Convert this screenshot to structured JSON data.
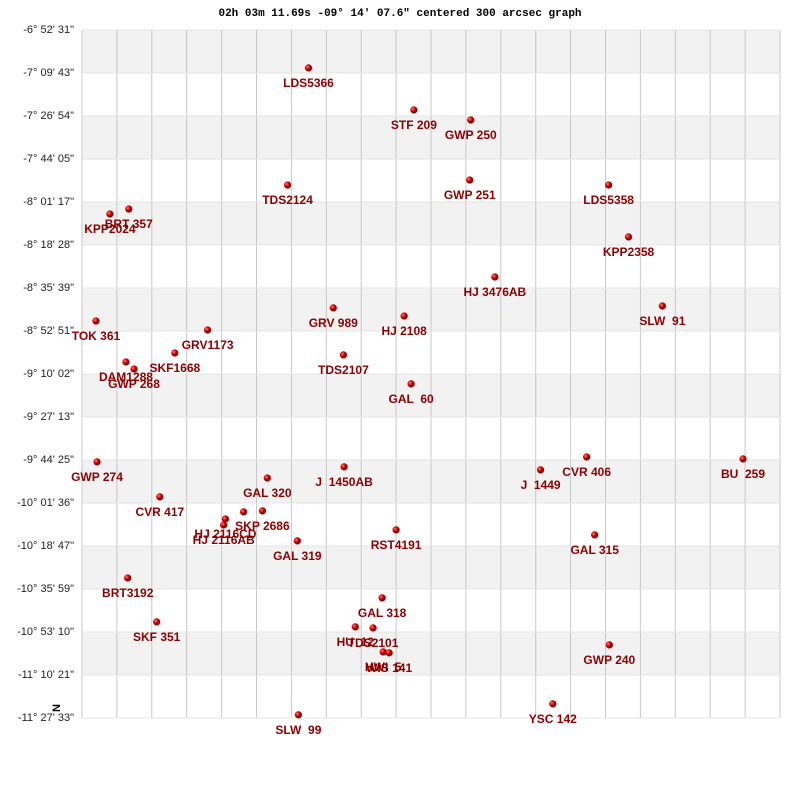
{
  "chart_data": {
    "type": "scatter",
    "title": "02h 03m 11.69s -09° 14′ 07.6\" centered 300 arcsec graph",
    "orientation_label": "N",
    "xlim": [
      0,
      20
    ],
    "xticks": [
      0,
      1,
      2,
      3,
      4,
      5,
      6,
      7,
      8,
      9,
      10,
      11,
      12,
      13,
      14,
      15,
      16,
      17,
      18,
      19,
      20
    ],
    "ylim": [
      -11.45917,
      -6.87528
    ],
    "yticks": [
      {
        "value": -6.87528,
        "label": "-6° 52' 31\""
      },
      {
        "value": -7.16194,
        "label": "-7° 09' 43\""
      },
      {
        "value": -7.44833,
        "label": "-7° 26' 54\""
      },
      {
        "value": -7.73472,
        "label": "-7° 44' 05\""
      },
      {
        "value": -8.02139,
        "label": "-8° 01' 17\""
      },
      {
        "value": -8.30778,
        "label": "-8° 18' 28\""
      },
      {
        "value": -8.59417,
        "label": "-8° 35' 39\""
      },
      {
        "value": -8.88083,
        "label": "-8° 52' 51\""
      },
      {
        "value": -9.16722,
        "label": "-9° 10' 02\""
      },
      {
        "value": -9.45361,
        "label": "-9° 27' 13\""
      },
      {
        "value": -9.74028,
        "label": "-9° 44' 25\""
      },
      {
        "value": -10.02667,
        "label": "-10° 01' 36\""
      },
      {
        "value": -10.31306,
        "label": "-10° 18' 47\""
      },
      {
        "value": -10.59972,
        "label": "-10° 35' 59\""
      },
      {
        "value": -10.88611,
        "label": "-10° 53' 10\""
      },
      {
        "value": -11.1725,
        "label": "-11° 10' 21\""
      },
      {
        "value": -11.45917,
        "label": "-11° 27' 33\""
      }
    ],
    "grid": true,
    "color": "#cc0000",
    "label_color": "#8b0000",
    "names": [
      "LDS5366",
      "STF 209",
      "GWP 250",
      "GWP 251",
      "TDS2124",
      "LDS5358",
      "BRT 357",
      "KPP2024",
      "KPP2358",
      "HJ 3476AB",
      "SLW  91",
      "GRV 989",
      "HJ 2108",
      "TOK 361",
      "GRV1173",
      "SKF1668",
      "TDS2107",
      "DAM1288",
      "GWP 268",
      "GAL  60",
      "CVR 406",
      "BU  259",
      "GWP 274",
      "J  1450AB",
      "J  1449",
      "GAL 320",
      "CVR 417",
      "SKP 2686",
      null,
      "HJ 2116CD",
      "HJ 2116AB",
      "RST4191",
      "GAL 315",
      "GAL 319",
      "BRT3192",
      "GAL 318",
      "SKF 351",
      "HU  12",
      "TDS2101",
      "HWI  5",
      "WIS 141",
      "GWP 240",
      "YSC 142",
      "SLW  99"
    ],
    "x": [
      6.49,
      9.51,
      11.14,
      11.11,
      5.89,
      15.09,
      1.34,
      0.8,
      15.66,
      11.83,
      16.63,
      7.2,
      9.23,
      0.4,
      3.6,
      2.66,
      7.49,
      1.26,
      1.49,
      9.43,
      14.46,
      18.94,
      0.43,
      7.51,
      13.14,
      5.31,
      2.23,
      5.17,
      4.63,
      4.11,
      4.06,
      9.0,
      14.69,
      6.17,
      1.31,
      8.6,
      2.14,
      7.83,
      8.34,
      8.63,
      8.8,
      15.11,
      13.49,
      6.2
    ],
    "values": [
      -7.128,
      -7.408,
      -7.475,
      -7.875,
      -7.908,
      -7.908,
      -8.068,
      -8.101,
      -8.254,
      -8.521,
      -8.714,
      -8.727,
      -8.781,
      -8.814,
      -8.874,
      -9.027,
      -9.04,
      -9.087,
      -9.134,
      -9.233,
      -9.72,
      -9.733,
      -9.753,
      -9.786,
      -9.806,
      -9.86,
      -9.986,
      -10.079,
      -10.086,
      -10.133,
      -10.173,
      -10.206,
      -10.239,
      -10.279,
      -10.526,
      -10.659,
      -10.819,
      -10.852,
      -10.859,
      -11.019,
      -11.025,
      -10.972,
      -11.365,
      -11.438
    ]
  }
}
